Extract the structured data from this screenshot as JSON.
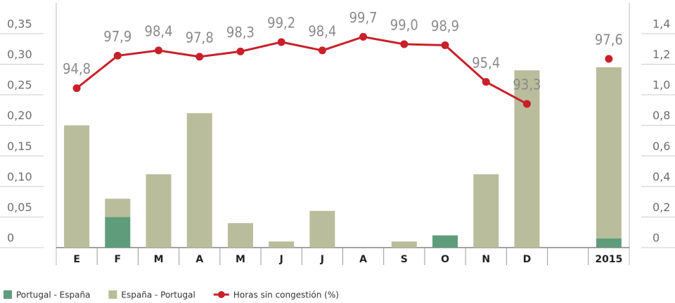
{
  "chart_data": {
    "type": "bar-line",
    "categories": [
      "E",
      "F",
      "M",
      "A",
      "M",
      "J",
      "J",
      "A",
      "S",
      "O",
      "N",
      "D",
      null,
      "2015"
    ],
    "series": [
      {
        "name": "Portugal - España",
        "color": "#5e9c7c",
        "type": "bar",
        "values": [
          0,
          0.05,
          0,
          0,
          0,
          0,
          0,
          0,
          0,
          0.02,
          0,
          0,
          null,
          0.015
        ]
      },
      {
        "name": "España - Portugal",
        "color": "#b9bd9b",
        "type": "bar",
        "values": [
          0.2,
          0.03,
          0.12,
          0.22,
          0.04,
          0.01,
          0.06,
          0,
          0.01,
          0,
          0.12,
          0.29,
          null,
          0.28
        ]
      },
      {
        "name": "Horas sin congestión (%)",
        "color": "#c8202a",
        "type": "line",
        "axis": "y3",
        "values": [
          94.8,
          97.9,
          98.4,
          97.8,
          98.3,
          99.2,
          98.4,
          99.7,
          99.0,
          98.9,
          95.4,
          93.3,
          null,
          97.6
        ],
        "value_labels": [
          "94,8",
          "97,9",
          "98,4",
          "97,8",
          "98,3",
          "99,2",
          "98,4",
          "99,7",
          "99,0",
          "98,9",
          "95,4",
          "93,3",
          null,
          "97,6"
        ]
      }
    ],
    "ylim": [
      0,
      0.35
    ],
    "yticks": [
      0,
      {
        "value": 0.05,
        "label": "0,05"
      },
      {
        "value": 0.1,
        "label": "0,10"
      },
      {
        "value": 0.15,
        "label": "0,15"
      },
      {
        "value": 0.2,
        "label": "0,20"
      },
      {
        "value": 0.25,
        "label": "0,25"
      },
      {
        "value": 0.3,
        "label": "0,30"
      },
      {
        "value": 0.35,
        "label": "0,35"
      }
    ],
    "y2lim": [
      0,
      1.4
    ],
    "y2ticks": [
      0,
      {
        "value": 0.2,
        "label": "0,2"
      },
      {
        "value": 0.4,
        "label": "0,4"
      },
      {
        "value": 0.6,
        "label": "0,6"
      },
      {
        "value": 0.8,
        "label": "0,8"
      },
      {
        "value": 1.0,
        "label": "1,0"
      },
      {
        "value": 1.2,
        "label": "1,2"
      },
      {
        "value": 1.4,
        "label": "1,4"
      }
    ],
    "y3lim": [
      79.6,
      100
    ]
  }
}
